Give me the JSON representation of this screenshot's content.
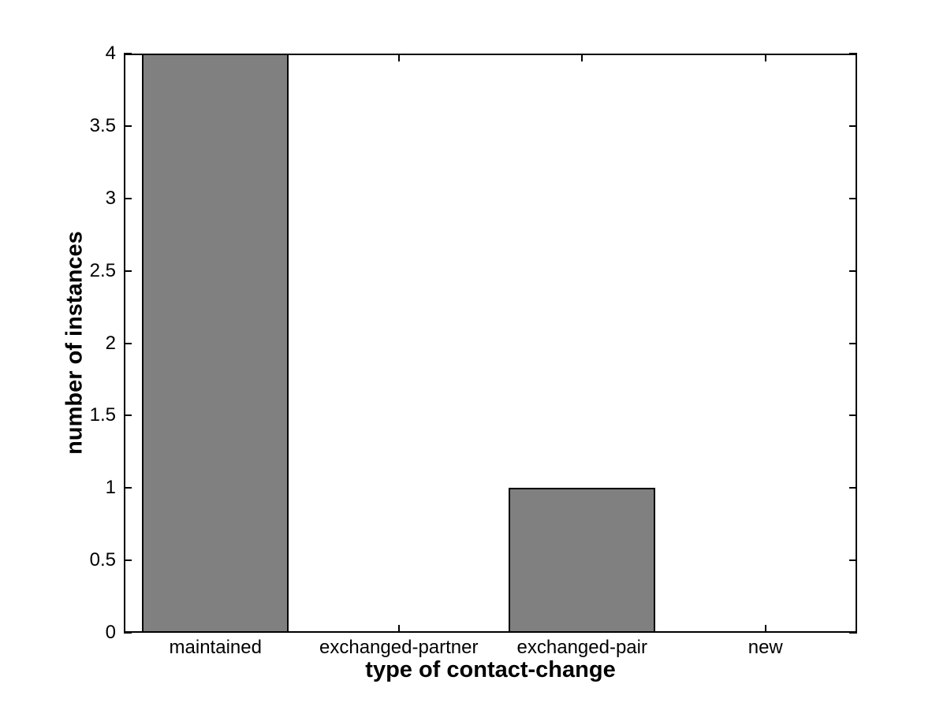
{
  "chart_data": {
    "type": "bar",
    "categories": [
      "maintained",
      "exchanged-partner",
      "exchanged-pair",
      "new"
    ],
    "values": [
      4,
      0,
      1,
      0
    ],
    "title": "",
    "xlabel": "type of contact-change",
    "ylabel": "number of instances",
    "xlim": [
      0.5,
      4.5
    ],
    "ylim": [
      0,
      4
    ],
    "yticks": [
      0,
      0.5,
      1,
      1.5,
      2,
      2.5,
      3,
      3.5,
      4
    ],
    "ytick_labels": [
      "0",
      "0.5",
      "1",
      "1.5",
      "2",
      "2.5",
      "3",
      "3.5",
      "4"
    ],
    "bar_width_fraction": 0.8,
    "grid": false,
    "legend": null,
    "colors": {
      "bar_fill": "#808080",
      "bar_edge": "#000000",
      "axis_line": "#000000",
      "text": "#000000",
      "background": "#ffffff"
    }
  }
}
